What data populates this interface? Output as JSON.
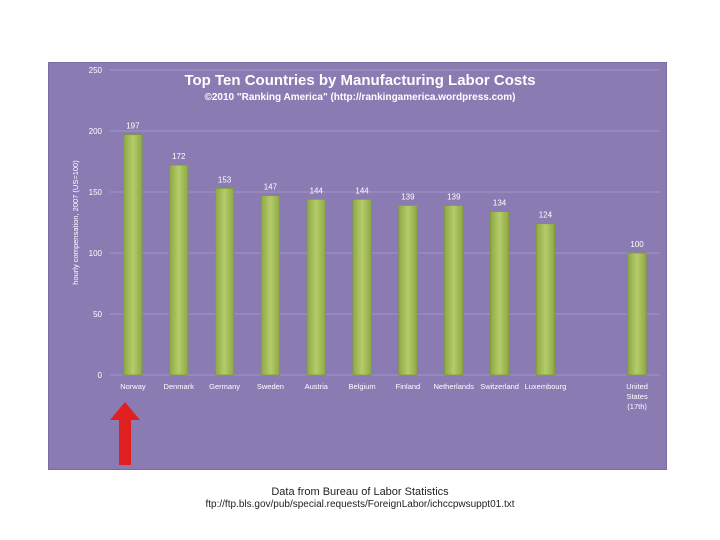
{
  "chart_data": {
    "type": "bar",
    "title": "Top Ten Countries by Manufacturing Labor Costs",
    "subtitle": "©2010 \"Ranking America\" (http://rankingamerica.wordpress.com)",
    "ylabel": "hourly compensation, 2007 (US=100)",
    "xlabel": "",
    "ylim": [
      0,
      250
    ],
    "yticks": [
      0,
      50,
      100,
      150,
      200,
      250
    ],
    "categories": [
      "Norway",
      "Denmark",
      "Germany",
      "Sweden",
      "Austria",
      "Belgium",
      "Finland",
      "Netherlands",
      "Switzerland",
      "Luxembourg",
      "",
      "United States (17th)"
    ],
    "category_lines": [
      [
        "Norway"
      ],
      [
        "Denmark"
      ],
      [
        "Germany"
      ],
      [
        "Sweden"
      ],
      [
        "Austria"
      ],
      [
        "Belgium"
      ],
      [
        "Finland"
      ],
      [
        "Netherlands"
      ],
      [
        "Switzerland"
      ],
      [
        "Luxembourg"
      ],
      [],
      [
        "United",
        "States",
        "(17th)"
      ]
    ],
    "values": [
      197,
      172,
      153,
      147,
      144,
      144,
      139,
      139,
      134,
      124,
      null,
      100
    ],
    "grid": true,
    "legend": "none",
    "colors": {
      "bar": "#b5cc6a",
      "bar_edge": "#7f9a35",
      "plot_bg": "#8a7cb3",
      "grid": "#a194c4",
      "text": "#ffffff",
      "arrow": "#e02020"
    }
  },
  "source": {
    "line1": "Data from Bureau of Labor Statistics",
    "line2": "ftp://ftp.bls.gov/pub/special.requests/ForeignLabor/ichccpwsuppt01.txt"
  },
  "annotation": {
    "arrow_icon": "red-up-arrow-icon",
    "points_to": "Norway"
  }
}
